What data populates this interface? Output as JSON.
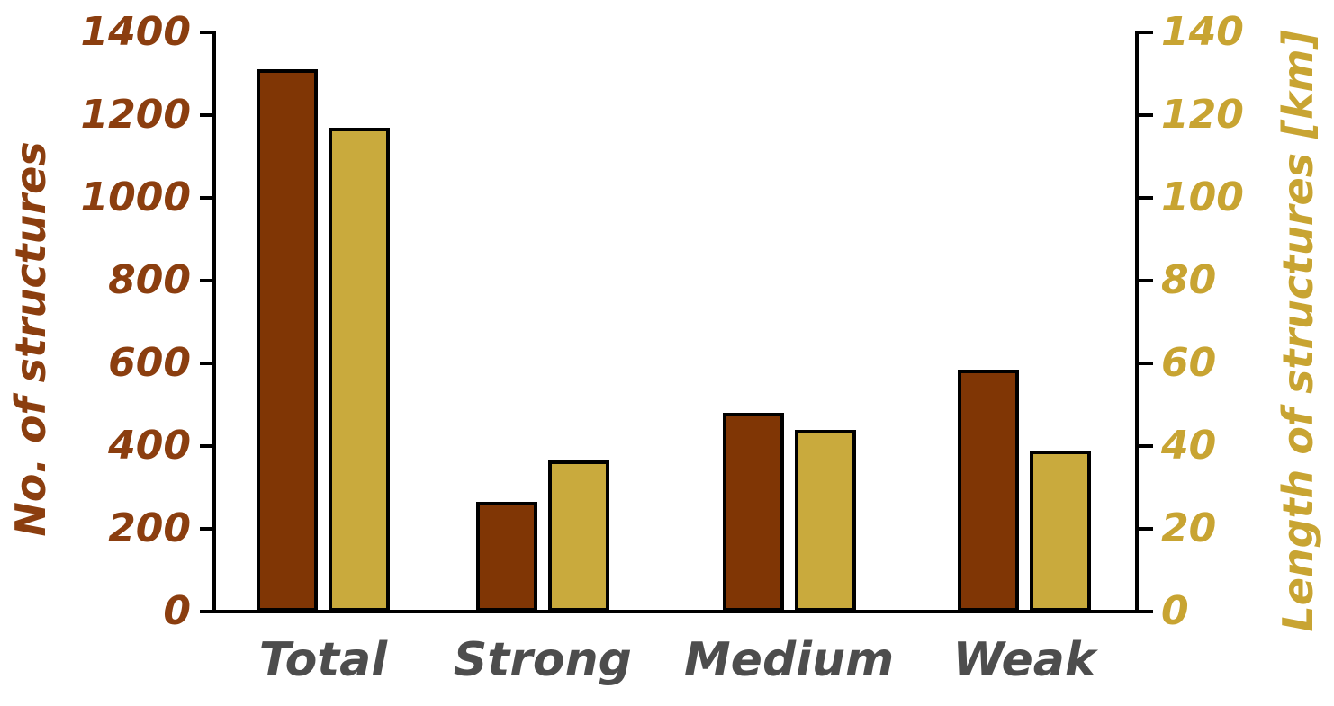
{
  "chart_data": {
    "type": "bar",
    "title": "",
    "categories": [
      "Total",
      "Strong",
      "Medium",
      "Weak"
    ],
    "series": [
      {
        "id": "count",
        "name": "No. of structures",
        "axis": "left",
        "color": "#803605",
        "values": [
          1310,
          265,
          480,
          585
        ]
      },
      {
        "id": "length",
        "name": "Length of structures [km]",
        "axis": "right",
        "color": "#C9AA3D",
        "values": [
          117,
          36.5,
          44,
          39
        ]
      }
    ],
    "left_axis": {
      "label": "No. of structures",
      "min": 0,
      "max": 1400,
      "step": 200,
      "ticks": [
        0,
        200,
        400,
        600,
        800,
        1000,
        1200,
        1400
      ],
      "color": "#8B3E0F"
    },
    "right_axis": {
      "label": "Length of structures [km]",
      "min": 0,
      "max": 140,
      "step": 20,
      "ticks": [
        0,
        20,
        40,
        60,
        80,
        100,
        120,
        140
      ],
      "color": "#C8A432"
    },
    "category_label_color": "#4D4D4D",
    "bar_outline_color": "#000000",
    "grid": false,
    "legend": "none"
  }
}
